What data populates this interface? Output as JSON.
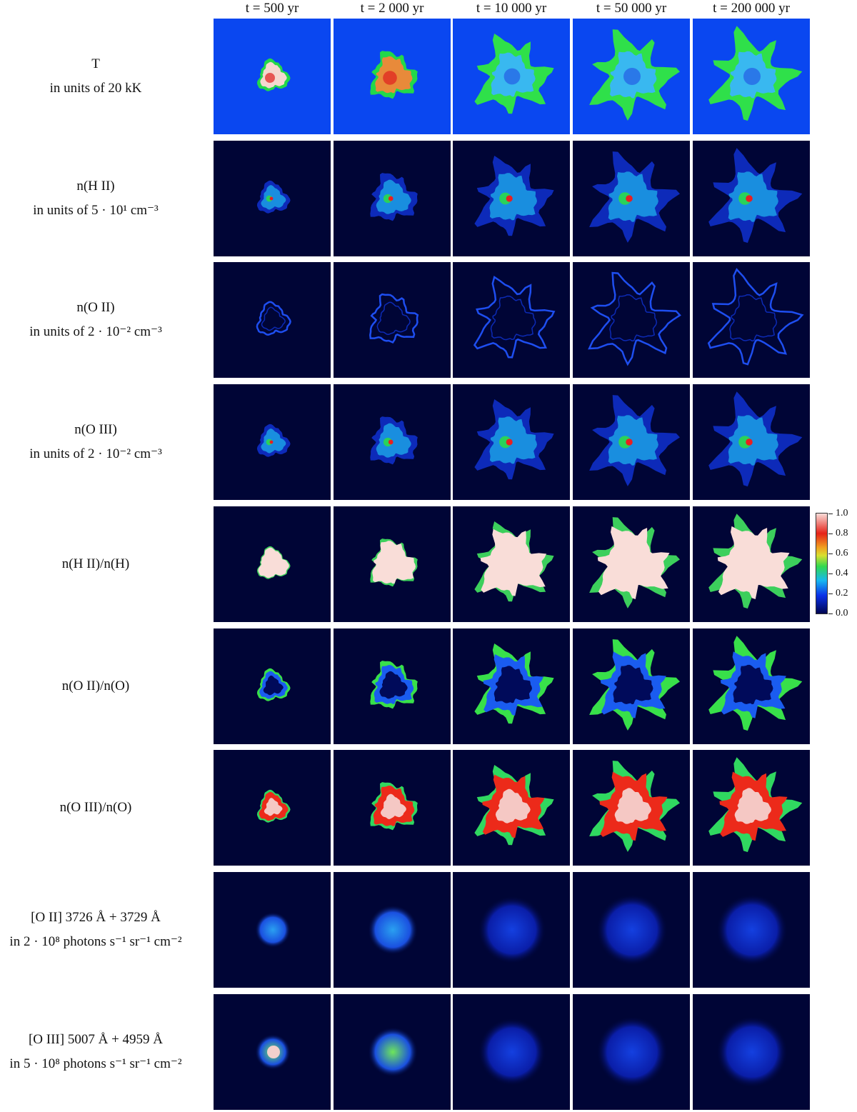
{
  "figure": {
    "columns": [
      {
        "label": "t = 500 yr",
        "t": "t",
        "rest": " = 500 yr"
      },
      {
        "label": "t = 2 000 yr",
        "t": "t",
        "rest": " = 2 000 yr"
      },
      {
        "label": "t = 10 000 yr",
        "t": "t",
        "rest": " = 10 000 yr"
      },
      {
        "label": "t = 50 000 yr",
        "t": "t",
        "rest": " = 50 000 yr"
      },
      {
        "label": "t = 200 000 yr",
        "t": "t",
        "rest": " = 200 000 yr"
      }
    ],
    "rows": [
      {
        "line1": "T",
        "line2": "in units of 20 kK"
      },
      {
        "line1": "n(H II)",
        "line2": "in units of 5 · 10¹ cm⁻³"
      },
      {
        "line1": "n(O II)",
        "line2": "in units of 2 · 10⁻² cm⁻³"
      },
      {
        "line1": "n(O III)",
        "line2": "in units of 2 · 10⁻² cm⁻³"
      },
      {
        "line1": "n(H II)/n(H)",
        "line2": ""
      },
      {
        "line1": "n(O II)/n(O)",
        "line2": ""
      },
      {
        "line1": "n(O III)/n(O)",
        "line2": ""
      },
      {
        "line1": "[O II] 3726 Å + 3729 Å",
        "line2": "in 2 · 10⁸ photons s⁻¹ sr⁻¹ cm⁻²"
      },
      {
        "line1": "[O III] 5007 Å + 4959 Å",
        "line2": "in 5 · 10⁸ photons s⁻¹ sr⁻¹ cm⁻²"
      }
    ],
    "colorbar": {
      "ticks": [
        "1.0",
        "0.8",
        "0.6",
        "0.4",
        "0.2",
        "0.0"
      ],
      "colormap": "jet-like (dark blue → blue → cyan → green → yellow → red → pale pink)"
    },
    "colors": {
      "background_T": "#0a47f0",
      "background_dark": "#000536"
    }
  }
}
